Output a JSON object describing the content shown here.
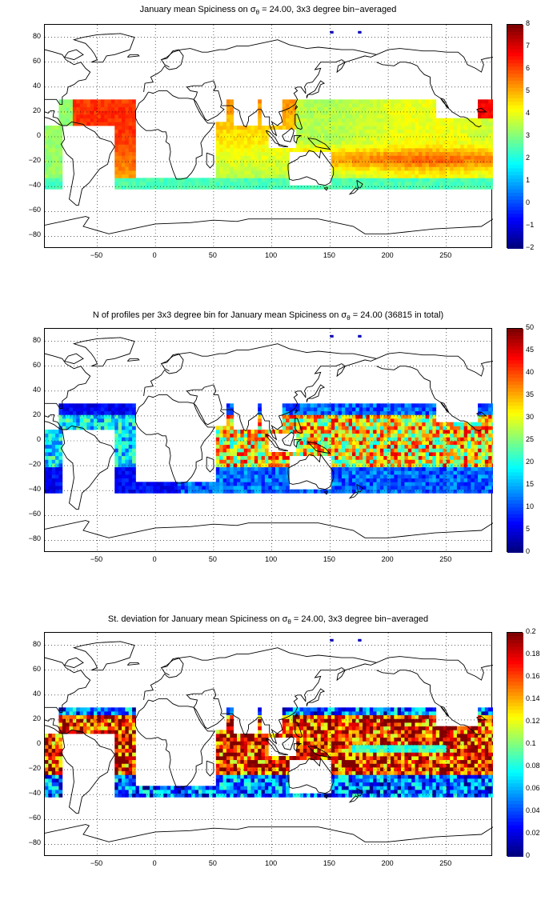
{
  "panels": [
    {
      "title_pre": "January mean Spiciness on σ",
      "title_sub": "θ",
      "title_post": " = 24.00, 3x3 degree bin−averaged",
      "field": "spiciness",
      "colorbar": {
        "min": -2,
        "max": 8,
        "ticks": [
          "8",
          "7",
          "6",
          "5",
          "4",
          "3",
          "2",
          "1",
          "0",
          "−1",
          "−2"
        ]
      }
    },
    {
      "title_pre": "N of profiles per 3x3 degree bin for January mean Spiciness on σ",
      "title_sub": "θ",
      "title_post": " = 24.00 (36815 in total)",
      "field": "count",
      "colorbar": {
        "min": 0,
        "max": 50,
        "ticks": [
          "50",
          "45",
          "40",
          "35",
          "30",
          "25",
          "20",
          "15",
          "10",
          "5",
          "0"
        ]
      }
    },
    {
      "title_pre": "St. deviation for January mean Spiciness on σ",
      "title_sub": "θ",
      "title_post": " = 24.00, 3x3 degree bin−averaged",
      "field": "stdev",
      "colorbar": {
        "min": 0,
        "max": 0.2,
        "ticks": [
          "0.2",
          "0.18",
          "0.16",
          "0.14",
          "0.12",
          "0.1",
          "0.08",
          "0.06",
          "0.04",
          "0.02",
          "0"
        ]
      }
    }
  ],
  "axes": {
    "xlim": [
      -95,
      290
    ],
    "ylim": [
      -90,
      90
    ],
    "xticks": [
      "−50",
      "0",
      "50",
      "100",
      "150",
      "200",
      "250"
    ],
    "xtick_values": [
      -50,
      0,
      50,
      100,
      150,
      200,
      250
    ],
    "yticks": [
      "80",
      "60",
      "40",
      "20",
      "0",
      "−20",
      "−40",
      "−60",
      "−80"
    ],
    "ytick_values": [
      80,
      60,
      40,
      20,
      0,
      -20,
      -40,
      -60,
      -80
    ],
    "grid": "dotted",
    "bin_size_deg": 3
  },
  "colormap": "jet",
  "coastline_color": "#000000"
}
